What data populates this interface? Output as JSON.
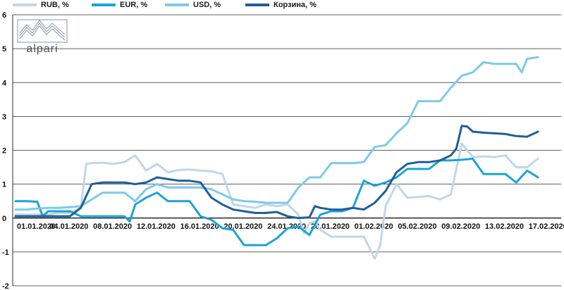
{
  "brand": {
    "name": "alpari"
  },
  "chart_data": {
    "type": "line",
    "title": "",
    "xlabel": "",
    "ylabel": "",
    "ylim": [
      -2,
      6
    ],
    "yticks": [
      -2,
      -1,
      0,
      1,
      2,
      3,
      4,
      5,
      6
    ],
    "grid": "horizontal",
    "legend": "top",
    "x_range": [
      0,
      50
    ],
    "x_ticks": [
      {
        "x": 0,
        "label": "01.01.2020"
      },
      {
        "x": 3,
        "label": "04.01.2020"
      },
      {
        "x": 7,
        "label": "08.01.2020"
      },
      {
        "x": 11,
        "label": "12.01.2020"
      },
      {
        "x": 15,
        "label": "16.01.2020"
      },
      {
        "x": 19,
        "label": "20.01.2020"
      },
      {
        "x": 23,
        "label": "24.01.2020"
      },
      {
        "x": 27,
        "label": "28.01.2020"
      },
      {
        "x": 31,
        "label": "01.02.2020"
      },
      {
        "x": 35,
        "label": "05.02.2020"
      },
      {
        "x": 39,
        "label": "09.02.2020"
      },
      {
        "x": 43,
        "label": "13.02.2020"
      },
      {
        "x": 47,
        "label": "17.02.2020"
      }
    ],
    "series": [
      {
        "name": "RUB, %",
        "color": "#bfd7ea",
        "points": [
          [
            0,
            0.1
          ],
          [
            1,
            0.1
          ],
          [
            2,
            0.1
          ],
          [
            3,
            0.1
          ],
          [
            4,
            0.15
          ],
          [
            5,
            0.15
          ],
          [
            6,
            0.3
          ],
          [
            6.5,
            1.6
          ],
          [
            7,
            1.62
          ],
          [
            8,
            1.63
          ],
          [
            9,
            1.6
          ],
          [
            10,
            1.65
          ],
          [
            11,
            1.85
          ],
          [
            12,
            1.4
          ],
          [
            13,
            1.6
          ],
          [
            14,
            1.35
          ],
          [
            15,
            1.42
          ],
          [
            16,
            1.43
          ],
          [
            17,
            1.4
          ],
          [
            18,
            1.38
          ],
          [
            19,
            1.3
          ],
          [
            20,
            0.4
          ],
          [
            21,
            0.35
          ],
          [
            22,
            0.3
          ],
          [
            23,
            0.4
          ],
          [
            24,
            0.35
          ],
          [
            25,
            0.4
          ],
          [
            26,
            0.1
          ],
          [
            26.5,
            -0.45
          ],
          [
            27,
            -0.15
          ],
          [
            27.5,
            -0.1
          ],
          [
            28,
            -0.35
          ],
          [
            29,
            -0.55
          ],
          [
            30,
            -0.55
          ],
          [
            31,
            -0.55
          ],
          [
            32,
            -0.55
          ],
          [
            33,
            -1.2
          ],
          [
            33.5,
            -0.8
          ],
          [
            34,
            0.35
          ],
          [
            35,
            1.0
          ],
          [
            36,
            0.6
          ],
          [
            37,
            0.62
          ],
          [
            38,
            0.65
          ],
          [
            39,
            0.55
          ],
          [
            40,
            0.7
          ],
          [
            41,
            2.2
          ],
          [
            42,
            1.8
          ],
          [
            43,
            1.82
          ],
          [
            44,
            1.8
          ],
          [
            45,
            1.85
          ],
          [
            46,
            1.5
          ],
          [
            47,
            1.5
          ],
          [
            48,
            1.75
          ]
        ]
      },
      {
        "name": "EUR, %",
        "color": "#1aa3dc",
        "points": [
          [
            0,
            0.5
          ],
          [
            1,
            0.5
          ],
          [
            2,
            0.48
          ],
          [
            2.5,
            0.05
          ],
          [
            3,
            0.2
          ],
          [
            4,
            0.2
          ],
          [
            5,
            0.2
          ],
          [
            6,
            0.05
          ],
          [
            7,
            0.05
          ],
          [
            8,
            0.05
          ],
          [
            9,
            0.05
          ],
          [
            10,
            0.05
          ],
          [
            10.5,
            -0.1
          ],
          [
            11,
            0.4
          ],
          [
            12,
            0.6
          ],
          [
            13,
            0.75
          ],
          [
            14,
            0.5
          ],
          [
            15,
            0.5
          ],
          [
            16,
            0.5
          ],
          [
            17,
            0.05
          ],
          [
            18,
            -0.05
          ],
          [
            19,
            -0.3
          ],
          [
            20,
            -0.35
          ],
          [
            21,
            -0.8
          ],
          [
            22,
            -0.8
          ],
          [
            23,
            -0.8
          ],
          [
            24,
            -0.6
          ],
          [
            25,
            -0.3
          ],
          [
            26,
            -0.25
          ],
          [
            27,
            -0.5
          ],
          [
            28,
            0.1
          ],
          [
            29,
            0.2
          ],
          [
            30,
            0.2
          ],
          [
            31,
            0.3
          ],
          [
            32,
            1.1
          ],
          [
            33,
            0.95
          ],
          [
            34,
            1.05
          ],
          [
            35,
            1.2
          ],
          [
            36,
            1.45
          ],
          [
            37,
            1.45
          ],
          [
            38,
            1.45
          ],
          [
            39,
            1.7
          ],
          [
            40,
            1.7
          ],
          [
            41,
            1.72
          ],
          [
            42,
            1.75
          ],
          [
            43,
            1.3
          ],
          [
            44,
            1.3
          ],
          [
            45,
            1.3
          ],
          [
            46,
            1.05
          ],
          [
            47,
            1.4
          ],
          [
            48,
            1.2
          ]
        ]
      },
      {
        "name": "USD, %",
        "color": "#7dcaea",
        "points": [
          [
            0,
            0.25
          ],
          [
            1,
            0.25
          ],
          [
            2,
            0.28
          ],
          [
            3,
            0.3
          ],
          [
            4,
            0.3
          ],
          [
            5,
            0.32
          ],
          [
            6,
            0.35
          ],
          [
            7,
            0.55
          ],
          [
            8,
            0.75
          ],
          [
            9,
            0.75
          ],
          [
            10,
            0.75
          ],
          [
            11,
            0.5
          ],
          [
            12,
            0.85
          ],
          [
            13,
            1.0
          ],
          [
            14,
            0.9
          ],
          [
            15,
            0.9
          ],
          [
            16,
            0.9
          ],
          [
            17,
            0.9
          ],
          [
            18,
            0.85
          ],
          [
            19,
            0.7
          ],
          [
            20,
            0.55
          ],
          [
            21,
            0.5
          ],
          [
            22,
            0.48
          ],
          [
            23,
            0.45
          ],
          [
            24,
            0.45
          ],
          [
            25,
            0.45
          ],
          [
            26,
            0.9
          ],
          [
            27,
            1.2
          ],
          [
            28,
            1.2
          ],
          [
            29,
            1.62
          ],
          [
            30,
            1.62
          ],
          [
            31,
            1.62
          ],
          [
            32,
            1.65
          ],
          [
            33,
            2.1
          ],
          [
            34,
            2.15
          ],
          [
            35,
            2.5
          ],
          [
            36,
            2.8
          ],
          [
            37,
            3.45
          ],
          [
            38,
            3.45
          ],
          [
            39,
            3.45
          ],
          [
            40,
            3.85
          ],
          [
            41,
            4.2
          ],
          [
            42,
            4.3
          ],
          [
            43,
            4.6
          ],
          [
            44,
            4.55
          ],
          [
            45,
            4.55
          ],
          [
            46,
            4.55
          ],
          [
            46.5,
            4.3
          ],
          [
            47,
            4.7
          ],
          [
            48,
            4.75
          ]
        ]
      },
      {
        "name": "Корзина, %",
        "color": "#1f5f99",
        "points": [
          [
            0,
            0.05
          ],
          [
            1,
            0.05
          ],
          [
            2,
            0.05
          ],
          [
            3,
            0.05
          ],
          [
            4,
            0.05
          ],
          [
            5,
            0.05
          ],
          [
            6,
            0.3
          ],
          [
            7,
            1.0
          ],
          [
            8,
            1.05
          ],
          [
            9,
            1.05
          ],
          [
            10,
            1.05
          ],
          [
            11,
            1.0
          ],
          [
            12,
            1.05
          ],
          [
            13,
            1.2
          ],
          [
            14,
            1.15
          ],
          [
            15,
            1.1
          ],
          [
            16,
            1.1
          ],
          [
            17,
            1.05
          ],
          [
            18,
            0.6
          ],
          [
            19,
            0.4
          ],
          [
            20,
            0.25
          ],
          [
            21,
            0.2
          ],
          [
            22,
            0.15
          ],
          [
            23,
            0.15
          ],
          [
            24,
            0.18
          ],
          [
            25,
            0.05
          ],
          [
            26,
            0.0
          ],
          [
            27,
            0.02
          ],
          [
            27.5,
            0.35
          ],
          [
            28,
            0.3
          ],
          [
            29,
            0.25
          ],
          [
            30,
            0.25
          ],
          [
            31,
            0.3
          ],
          [
            32,
            0.25
          ],
          [
            33,
            0.45
          ],
          [
            34,
            0.8
          ],
          [
            35,
            1.35
          ],
          [
            36,
            1.6
          ],
          [
            37,
            1.65
          ],
          [
            38,
            1.65
          ],
          [
            39,
            1.7
          ],
          [
            40,
            1.85
          ],
          [
            40.5,
            2.05
          ],
          [
            41,
            2.72
          ],
          [
            41.5,
            2.7
          ],
          [
            42,
            2.55
          ],
          [
            43,
            2.52
          ],
          [
            44,
            2.5
          ],
          [
            45,
            2.48
          ],
          [
            46,
            2.42
          ],
          [
            47,
            2.4
          ],
          [
            48,
            2.55
          ]
        ]
      }
    ]
  }
}
